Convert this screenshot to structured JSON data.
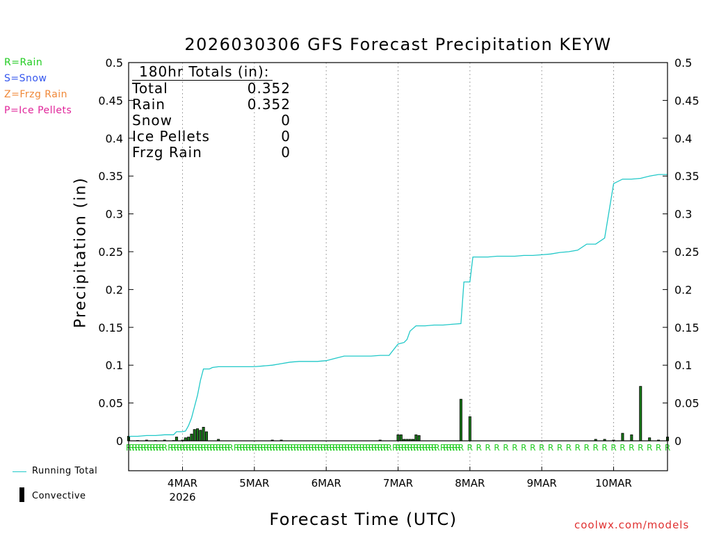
{
  "chart_data": {
    "type": "bar",
    "title": "2026030306 GFS Forecast Precipitation KEYW",
    "xlabel": "Forecast Time (UTC)",
    "ylabel": "Precipitation (in)",
    "ylim": [
      0,
      0.5
    ],
    "yticks": [
      "0",
      "0.05",
      "0.1",
      "0.15",
      "0.2",
      "0.25",
      "0.3",
      "0.35",
      "0.4",
      "0.45",
      "0.5"
    ],
    "xlim_hours": [
      6,
      186
    ],
    "xticks": [
      {
        "hour": 24,
        "label": "4MAR",
        "sublabel": "2026"
      },
      {
        "hour": 48,
        "label": "5MAR"
      },
      {
        "hour": 72,
        "label": "6MAR"
      },
      {
        "hour": 96,
        "label": "7MAR"
      },
      {
        "hour": 120,
        "label": "8MAR"
      },
      {
        "hour": 144,
        "label": "9MAR"
      },
      {
        "hour": 168,
        "label": "10MAR"
      }
    ],
    "grid": "vertical dotted",
    "legend_placement": "left",
    "legend_types": [
      {
        "text": "R=Rain",
        "color": "#22cc22"
      },
      {
        "text": "S=Snow",
        "color": "#3355ee"
      },
      {
        "text": "Z=Frzg Rain",
        "color": "#f08838"
      },
      {
        "text": "P=Ice Pellets",
        "color": "#e0259a"
      }
    ],
    "series": [
      {
        "name": "Running Total",
        "color": "#20c8c8",
        "points": [
          [
            6,
            0.006
          ],
          [
            9,
            0.006
          ],
          [
            12,
            0.007
          ],
          [
            15,
            0.007
          ],
          [
            18,
            0.008
          ],
          [
            21,
            0.008
          ],
          [
            22,
            0.012
          ],
          [
            24,
            0.012
          ],
          [
            25,
            0.013
          ],
          [
            26,
            0.02
          ],
          [
            27,
            0.03
          ],
          [
            28,
            0.045
          ],
          [
            29,
            0.06
          ],
          [
            30,
            0.08
          ],
          [
            31,
            0.095
          ],
          [
            33,
            0.095
          ],
          [
            34,
            0.097
          ],
          [
            36,
            0.098
          ],
          [
            48,
            0.098
          ],
          [
            51,
            0.099
          ],
          [
            54,
            0.1
          ],
          [
            57,
            0.102
          ],
          [
            60,
            0.104
          ],
          [
            63,
            0.105
          ],
          [
            66,
            0.105
          ],
          [
            69,
            0.105
          ],
          [
            72,
            0.106
          ],
          [
            75,
            0.109
          ],
          [
            78,
            0.112
          ],
          [
            81,
            0.112
          ],
          [
            84,
            0.112
          ],
          [
            87,
            0.112
          ],
          [
            90,
            0.113
          ],
          [
            93,
            0.113
          ],
          [
            96,
            0.128
          ],
          [
            98,
            0.13
          ],
          [
            99,
            0.134
          ],
          [
            100,
            0.145
          ],
          [
            102,
            0.152
          ],
          [
            105,
            0.152
          ],
          [
            108,
            0.153
          ],
          [
            111,
            0.153
          ],
          [
            114,
            0.154
          ],
          [
            117,
            0.155
          ],
          [
            118,
            0.21
          ],
          [
            120,
            0.21
          ],
          [
            121,
            0.243
          ],
          [
            123,
            0.243
          ],
          [
            126,
            0.243
          ],
          [
            129,
            0.244
          ],
          [
            132,
            0.244
          ],
          [
            135,
            0.244
          ],
          [
            138,
            0.245
          ],
          [
            141,
            0.245
          ],
          [
            144,
            0.246
          ],
          [
            147,
            0.247
          ],
          [
            150,
            0.249
          ],
          [
            153,
            0.25
          ],
          [
            156,
            0.252
          ],
          [
            159,
            0.26
          ],
          [
            162,
            0.26
          ],
          [
            165,
            0.268
          ],
          [
            168,
            0.34
          ],
          [
            171,
            0.346
          ],
          [
            174,
            0.346
          ],
          [
            177,
            0.347
          ],
          [
            180,
            0.35
          ],
          [
            183,
            0.352
          ],
          [
            186,
            0.352
          ]
        ]
      },
      {
        "name": "Convective",
        "color": "#000000",
        "bars": [
          [
            6,
            0.006
          ],
          [
            9,
            0.0
          ],
          [
            12,
            0.001
          ],
          [
            15,
            0.0
          ],
          [
            18,
            0.001
          ],
          [
            21,
            0.0
          ],
          [
            22,
            0.005
          ],
          [
            24,
            0.001
          ],
          [
            25,
            0.004
          ],
          [
            26,
            0.005
          ],
          [
            27,
            0.009
          ],
          [
            28,
            0.015
          ],
          [
            29,
            0.016
          ],
          [
            30,
            0.014
          ],
          [
            31,
            0.018
          ],
          [
            32,
            0.012
          ],
          [
            36,
            0.002
          ],
          [
            54,
            0.001
          ],
          [
            57,
            0.001
          ],
          [
            90,
            0.001
          ],
          [
            96,
            0.008
          ],
          [
            97,
            0.008
          ],
          [
            98,
            0.002
          ],
          [
            99,
            0.002
          ],
          [
            100,
            0.002
          ],
          [
            101,
            0.002
          ],
          [
            102,
            0.008
          ],
          [
            103,
            0.007
          ],
          [
            117,
            0.055
          ],
          [
            120,
            0.032
          ],
          [
            162,
            0.002
          ],
          [
            165,
            0.002
          ],
          [
            168,
            0.001
          ],
          [
            171,
            0.01
          ],
          [
            174,
            0.008
          ],
          [
            177,
            0.072
          ],
          [
            180,
            0.004
          ],
          [
            183,
            0.001
          ],
          [
            186,
            0.005
          ]
        ]
      }
    ],
    "ptype_markers": {
      "text": "R",
      "color": "#22cc22",
      "hours": [
        6,
        7,
        8,
        9,
        10,
        11,
        12,
        13,
        14,
        15,
        16,
        17,
        18,
        20,
        21,
        22,
        23,
        24,
        25,
        26,
        27,
        28,
        29,
        30,
        31,
        32,
        33,
        34,
        35,
        36,
        37,
        38,
        39,
        40,
        42,
        43,
        44,
        45,
        46,
        47,
        48,
        49,
        50,
        51,
        52,
        53,
        54,
        55,
        56,
        57,
        58,
        59,
        60,
        61,
        62,
        63,
        64,
        65,
        66,
        67,
        68,
        69,
        70,
        71,
        72,
        73,
        74,
        75,
        76,
        77,
        78,
        79,
        80,
        81,
        82,
        83,
        84,
        85,
        86,
        87,
        88,
        89,
        90,
        91,
        92,
        93,
        95,
        96,
        97,
        98,
        99,
        100,
        101,
        102,
        103,
        104,
        105,
        106,
        107,
        108,
        109,
        111,
        112,
        113,
        114,
        115,
        116,
        117,
        120,
        123,
        126,
        129,
        132,
        135,
        138,
        141,
        144,
        147,
        150,
        153,
        156,
        159,
        162,
        165,
        168,
        171,
        174,
        177,
        180,
        183,
        186
      ]
    }
  },
  "totals_box": {
    "heading": "180hr Totals (in):",
    "rows": [
      {
        "label": "Total",
        "value": "0.352"
      },
      {
        "label": "Rain",
        "value": "0.352"
      },
      {
        "label": "Snow",
        "value": "0"
      },
      {
        "label": "Ice Pellets",
        "value": "0"
      },
      {
        "label": "Frzg Rain",
        "value": "0"
      }
    ]
  },
  "bottom_legend": {
    "running_total": "Running Total",
    "convective": "Convective"
  },
  "credit": "coolwx.com/models"
}
